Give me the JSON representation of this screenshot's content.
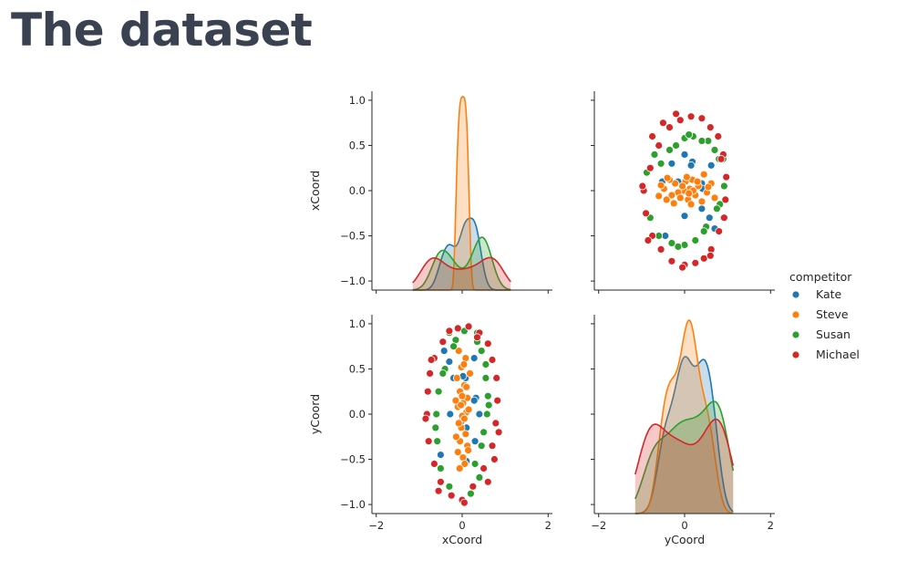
{
  "slide": {
    "title": "The dataset"
  },
  "chart_data": {
    "type": "pairplot",
    "variables": [
      "xCoord",
      "yCoord"
    ],
    "diag": "kde",
    "offdiag": "scatter",
    "hue_title": "competitor",
    "series": [
      {
        "name": "Kate",
        "color": "#1f77b4",
        "x": [
          -0.42,
          -0.3,
          0.08,
          0.28,
          0.32,
          -0.28,
          -0.02,
          0.28,
          0.1,
          -0.5,
          0.3,
          -0.2,
          0.02,
          0.4,
          0.1
        ],
        "y": [
          0.7,
          0.58,
          0.4,
          0.62,
          0.18,
          0.0,
          -0.08,
          0.15,
          -0.15,
          -0.45,
          -0.3,
          0.4,
          0.42,
          0.0,
          -0.52
        ]
      },
      {
        "name": "Steve",
        "color": "#ff7f0e",
        "x": [
          -0.08,
          0.08,
          -0.02,
          0.18,
          -0.12,
          0.05,
          -0.05,
          0.12,
          0.02,
          -0.1,
          0.1,
          0.0,
          0.15,
          -0.15,
          0.05,
          -0.02,
          0.08,
          -0.05,
          0.12,
          -0.1,
          0.02,
          0.06,
          -0.06,
          0.14,
          -0.14,
          0.0,
          0.1,
          -0.08,
          0.04,
          -0.03
        ],
        "y": [
          0.7,
          0.62,
          0.52,
          0.45,
          0.4,
          0.32,
          0.25,
          0.18,
          0.12,
          0.08,
          0.02,
          -0.02,
          0.05,
          0.15,
          -0.05,
          -0.15,
          -0.22,
          -0.3,
          -0.35,
          -0.42,
          -0.48,
          -0.55,
          -0.6,
          -0.4,
          -0.25,
          0.2,
          0.3,
          -0.1,
          0.55,
          0.1
        ]
      },
      {
        "name": "Susan",
        "color": "#2ca02c",
        "x": [
          -0.3,
          -0.15,
          0.35,
          0.45,
          0.55,
          0.55,
          0.6,
          0.58,
          0.5,
          0.45,
          0.3,
          -0.3,
          -0.5,
          -0.58,
          -0.6,
          -0.55,
          -0.4,
          -0.2,
          0.05,
          0.35,
          0.62,
          0.4,
          -0.62,
          -0.45,
          0.2
        ],
        "y": [
          0.9,
          0.82,
          0.8,
          0.7,
          0.55,
          0.4,
          0.2,
          0.0,
          -0.2,
          -0.35,
          -0.55,
          -0.8,
          -0.6,
          -0.3,
          0.0,
          0.25,
          0.5,
          0.75,
          0.92,
          0.9,
          0.1,
          -0.7,
          -0.15,
          0.45,
          -0.88
        ]
      },
      {
        "name": "Michael",
        "color": "#d62728",
        "x": [
          -0.1,
          0.15,
          0.4,
          0.6,
          0.7,
          0.8,
          0.82,
          0.78,
          0.7,
          0.5,
          0.25,
          0.0,
          -0.25,
          -0.5,
          -0.65,
          -0.78,
          -0.82,
          -0.8,
          -0.75,
          -0.65,
          -0.45,
          -0.3,
          0.6,
          0.75,
          -0.72,
          0.05,
          0.35,
          -0.85,
          0.85,
          -0.55
        ],
        "y": [
          0.95,
          0.97,
          0.9,
          0.78,
          0.6,
          0.4,
          0.15,
          -0.1,
          -0.35,
          -0.6,
          -0.8,
          -0.95,
          -0.9,
          -0.75,
          -0.55,
          -0.3,
          0.0,
          0.25,
          0.45,
          0.62,
          0.8,
          0.92,
          -0.75,
          -0.5,
          0.6,
          -0.98,
          0.85,
          -0.05,
          -0.2,
          -0.85
        ]
      }
    ],
    "x_ticks": [
      "−2",
      "0",
      "2"
    ],
    "y_ticks": [
      "1.0",
      "0.5",
      "0.0",
      "−0.5",
      "−1.0"
    ],
    "xlim": [
      -2.1,
      2.1
    ],
    "ylim": [
      -1.1,
      1.1
    ],
    "legend_position": "right"
  }
}
